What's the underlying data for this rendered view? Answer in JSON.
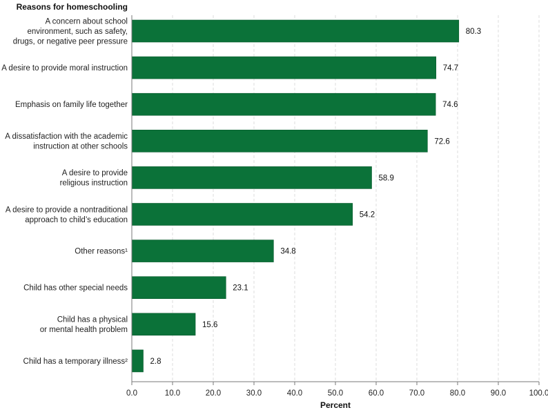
{
  "chart_data": {
    "type": "bar",
    "orientation": "horizontal",
    "title": "Reasons for homeschooling",
    "xlabel": "Percent",
    "ylabel": "",
    "xlim": [
      0,
      100
    ],
    "xticks": [
      "0.0",
      "10.0",
      "20.0",
      "30.0",
      "40.0",
      "50.0",
      "60.0",
      "70.0",
      "80.0",
      "90.0",
      "100.0"
    ],
    "grid": "vertical dashed",
    "bar_color": "#0b7239",
    "categories": [
      [
        "A concern about school",
        "environment, such as safety,",
        "drugs, or negative peer pressure"
      ],
      [
        "A desire to provide moral instruction"
      ],
      [
        "Emphasis on family life together"
      ],
      [
        "A dissatisfaction with the academic",
        "instruction at other schools"
      ],
      [
        "A desire to provide",
        "religious instruction"
      ],
      [
        "A desire to provide a nontraditional",
        "approach to child’s education"
      ],
      [
        "Other reasons¹"
      ],
      [
        "Child has other special needs"
      ],
      [
        "Child has a physical",
        "or mental health problem"
      ],
      [
        "Child has a temporary illness²"
      ]
    ],
    "values": [
      80.3,
      74.7,
      74.6,
      72.6,
      58.9,
      54.2,
      34.8,
      23.1,
      15.6,
      2.8
    ],
    "value_labels": [
      "80.3",
      "74.7",
      "74.6",
      "72.6",
      "58.9",
      "54.2",
      "34.8",
      "23.1",
      "15.6",
      "2.8"
    ]
  }
}
